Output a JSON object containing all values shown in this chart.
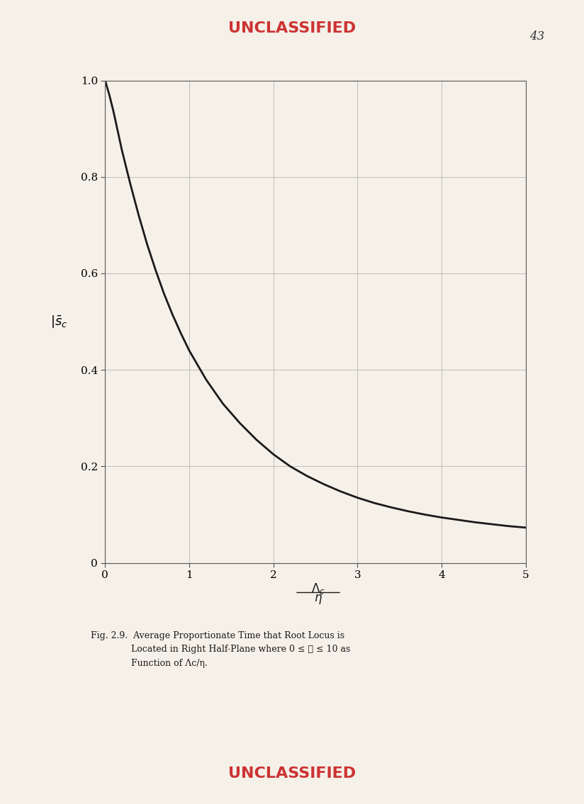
{
  "background_color": "#f5f0e8",
  "title_text": "UNCLASSIFIED",
  "title_color": "#cc3333",
  "bottom_text": "UNCLASSIFIED",
  "page_number": "43",
  "caption_line1": "Fig. 2.9.  Average Proportionate Time that Root Locus is",
  "caption_line2": "Located in Right Half-Plane where 0 ≤ ℓ ≤ 10 as",
  "caption_line3": "Function of Λc/η.",
  "xlim": [
    0,
    5
  ],
  "ylim": [
    0,
    1.0
  ],
  "xticks": [
    0,
    1,
    2,
    3,
    4,
    5
  ],
  "yticks": [
    0,
    0.2,
    0.4,
    0.6,
    0.8,
    1.0
  ],
  "curve_color": "#1a1a1a",
  "curve_linewidth": 2.0,
  "grid_color": "#aaaaaa",
  "grid_linewidth": 0.5,
  "x_data": [
    0.0,
    0.05,
    0.1,
    0.15,
    0.2,
    0.3,
    0.4,
    0.5,
    0.6,
    0.7,
    0.8,
    0.9,
    1.0,
    1.2,
    1.4,
    1.6,
    1.8,
    2.0,
    2.2,
    2.4,
    2.6,
    2.8,
    3.0,
    3.2,
    3.4,
    3.6,
    3.8,
    4.0,
    4.2,
    4.4,
    4.6,
    4.8,
    5.0
  ],
  "y_data": [
    1.0,
    0.97,
    0.935,
    0.895,
    0.855,
    0.785,
    0.72,
    0.66,
    0.607,
    0.558,
    0.515,
    0.476,
    0.44,
    0.38,
    0.33,
    0.29,
    0.255,
    0.225,
    0.2,
    0.18,
    0.163,
    0.148,
    0.135,
    0.124,
    0.115,
    0.107,
    0.1,
    0.094,
    0.089,
    0.084,
    0.08,
    0.076,
    0.073
  ]
}
